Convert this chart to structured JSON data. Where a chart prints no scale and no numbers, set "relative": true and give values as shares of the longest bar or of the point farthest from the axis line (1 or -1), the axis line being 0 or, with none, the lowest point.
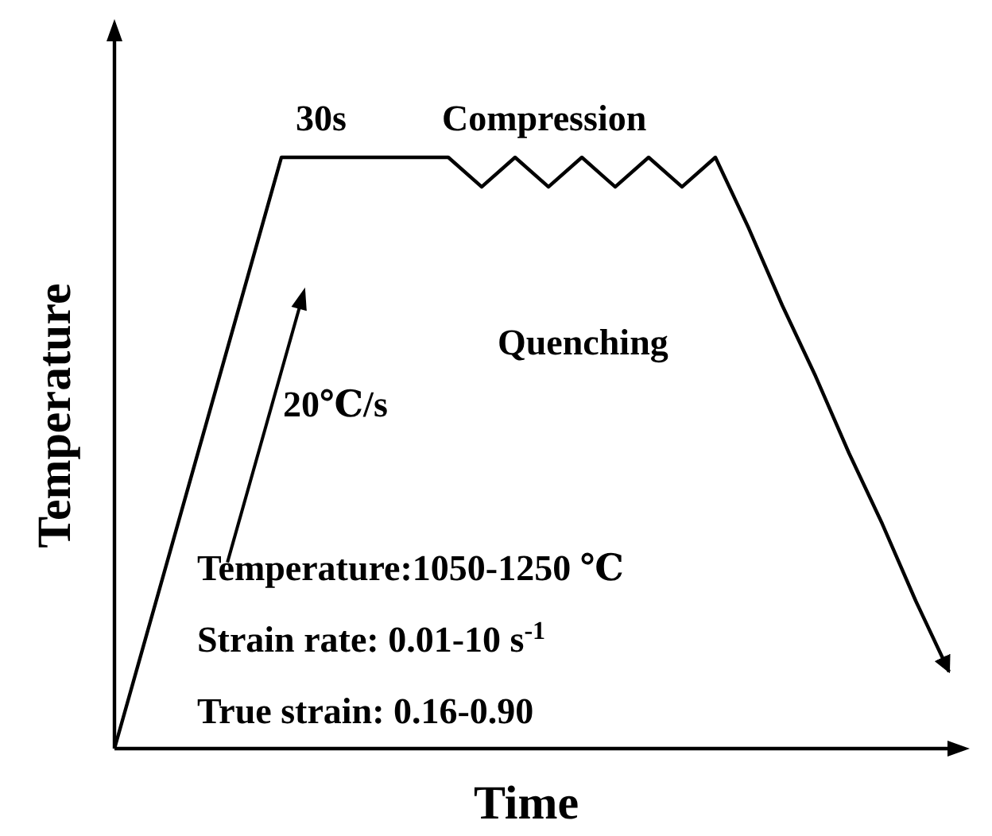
{
  "chart_data": {
    "type": "line",
    "relative": true,
    "xlabel": "Time",
    "ylabel": "Temperature",
    "marker": "none",
    "line_style": "solid",
    "categories": [
      null,
      null,
      null,
      null,
      null,
      null,
      null,
      null,
      null,
      null,
      null,
      null,
      null,
      null,
      null,
      null,
      null,
      null,
      null,
      null,
      null,
      null,
      null,
      null,
      null,
      null
    ],
    "series": [
      {
        "color": "#000000",
        "values": [
          0,
          0.2,
          0.4,
          0.6,
          0.8,
          1,
          1,
          1,
          1,
          1,
          1,
          0.95,
          1,
          0.95,
          1,
          0.95,
          1,
          0.95,
          1,
          0.88,
          0.75,
          0.63,
          0.5,
          0.38,
          0.25,
          0.13
        ]
      }
    ],
    "annotations": [
      "30s",
      "Compression",
      "Quenching",
      "20℃/s",
      "Temperature:1050-1250 ℃",
      "Strain rate: 0.01-10 s$^{-1}$",
      "True strain: 0.16-0.90"
    ]
  }
}
